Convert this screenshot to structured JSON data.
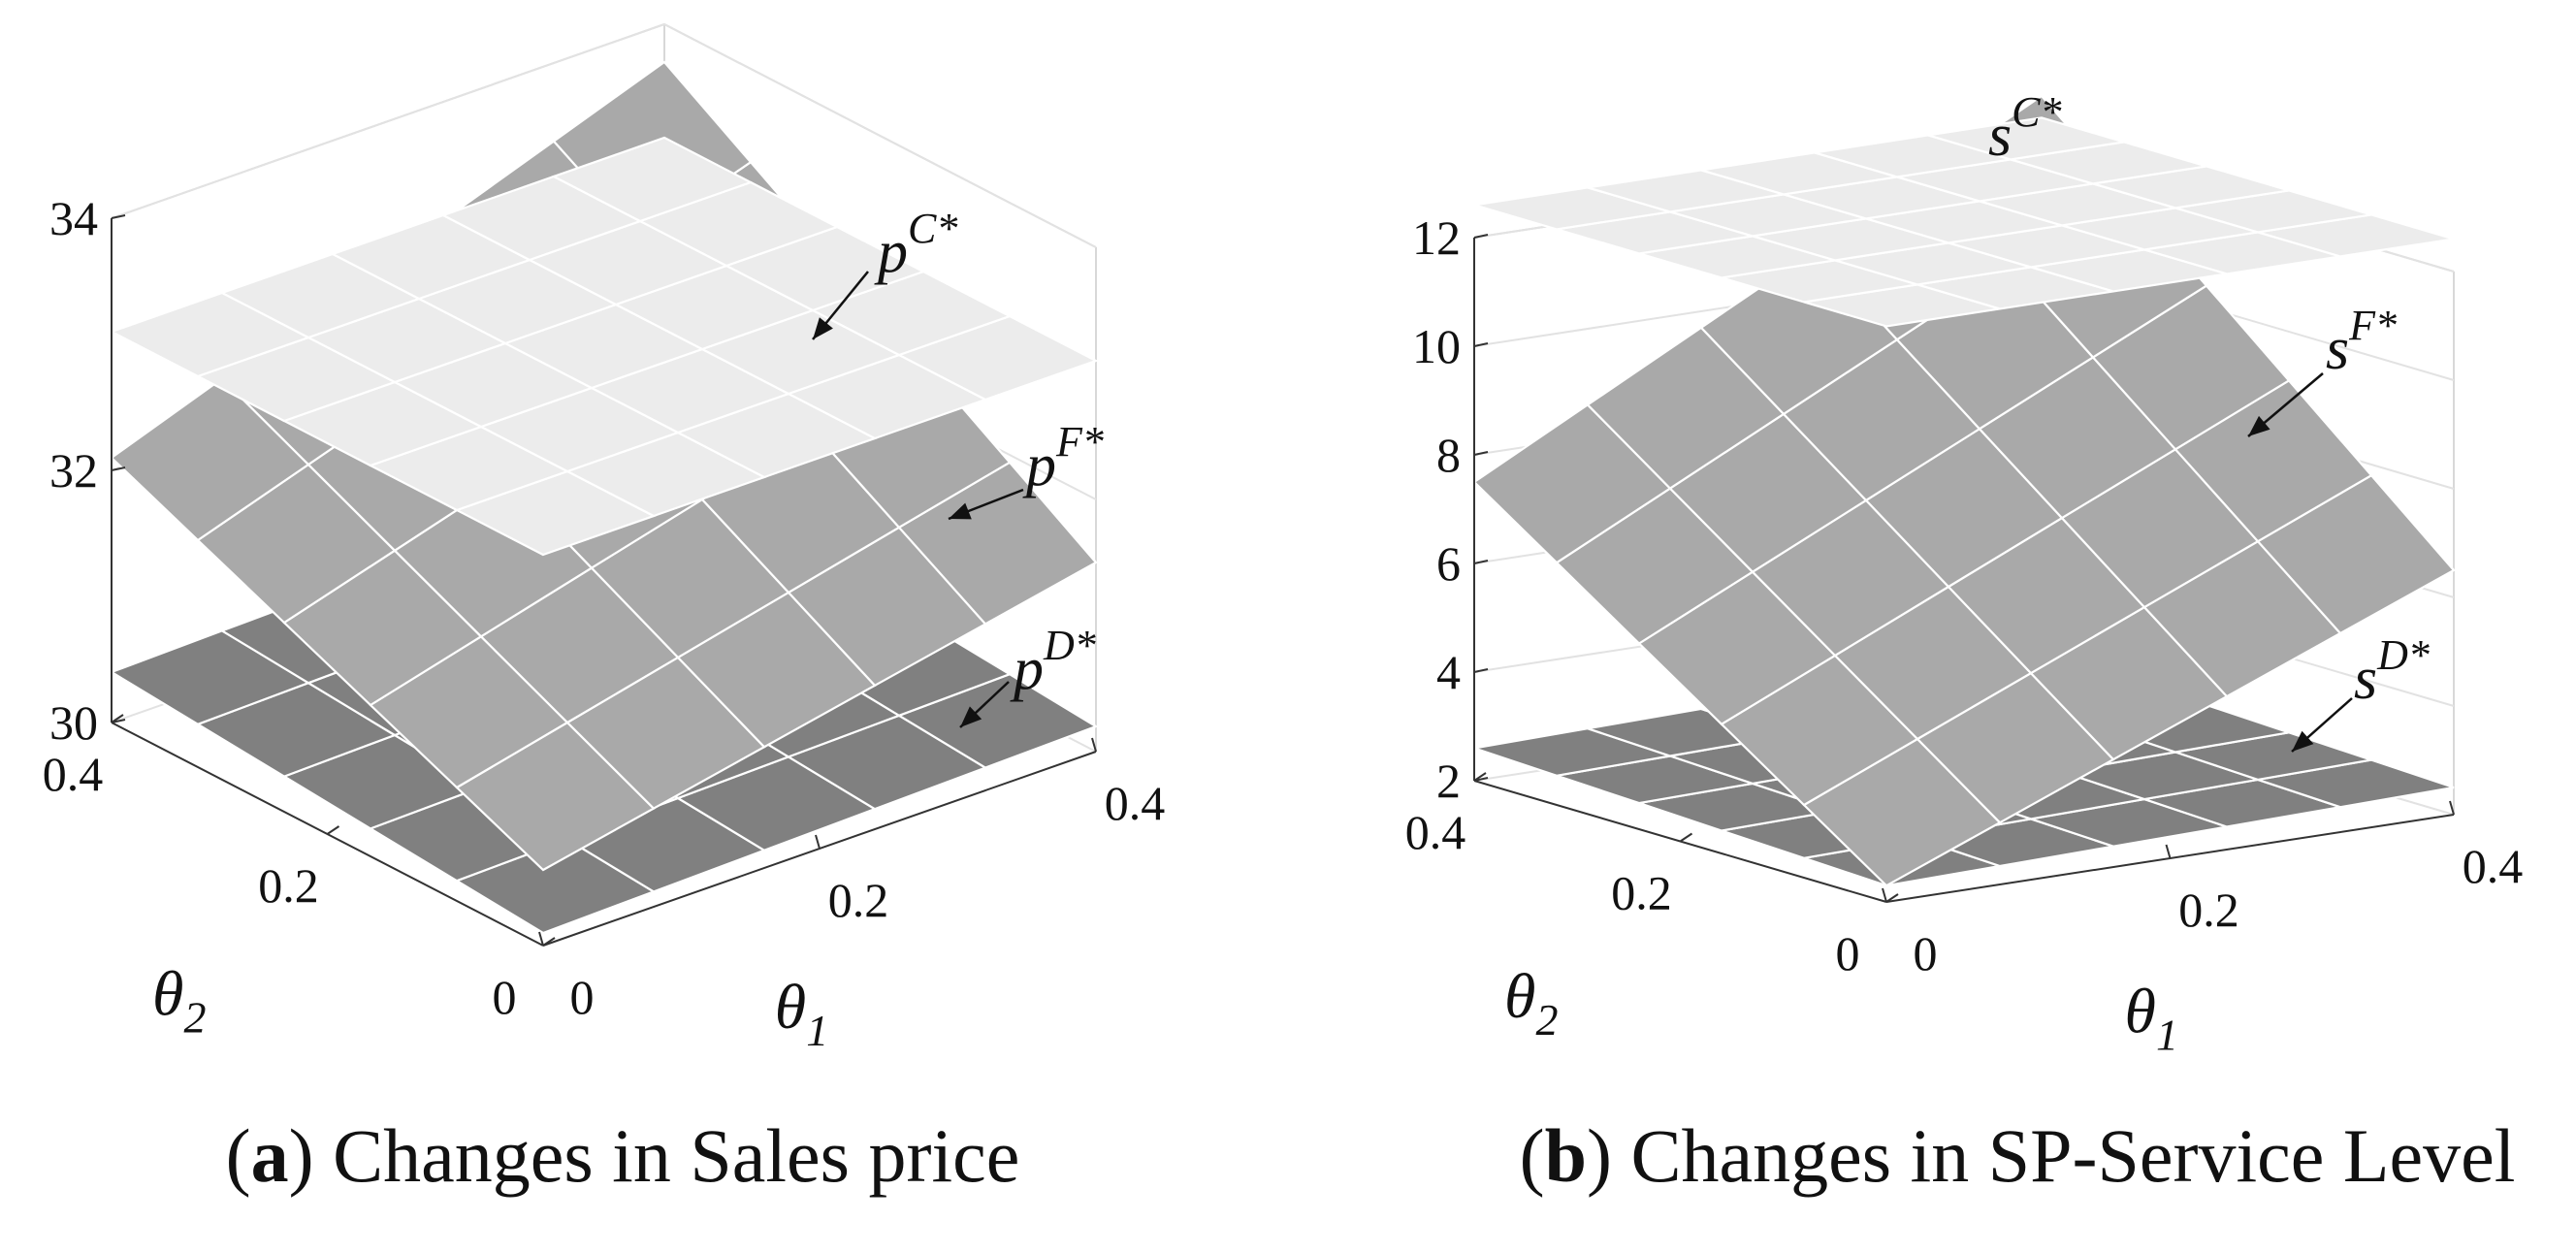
{
  "chart_data": [
    {
      "type": "surface3d",
      "caption_letter": "a",
      "caption_text": "Changes in Sales price",
      "xlabel": "θ",
      "xlabel_sub": "1",
      "ylabel": "θ",
      "ylabel_sub": "2",
      "xlim": [
        0,
        0.4
      ],
      "ylim": [
        0,
        0.4
      ],
      "zlim": [
        30,
        34
      ],
      "x_ticks": [
        0,
        0.2,
        0.4
      ],
      "y_ticks": [
        0,
        0.2,
        0.4
      ],
      "z_ticks": [
        30,
        32,
        34
      ],
      "x_tick_labels": [
        "0",
        "0.2",
        "0.4"
      ],
      "y_tick_labels": [
        "0",
        "0.2",
        "0.4"
      ],
      "z_tick_labels": [
        "30",
        "32",
        "34"
      ],
      "series": [
        {
          "name": "p",
          "name_sup": "C*",
          "color": "#ececec",
          "z": [
            [
              33.1,
              33.1
            ],
            [
              33.1,
              33.1
            ]
          ]
        },
        {
          "name": "p",
          "name_sup": "F*",
          "color": "#a9a9a9",
          "z": [
            [
              30.6,
              31.5
            ],
            [
              32.1,
              33.7
            ]
          ]
        },
        {
          "name": "p",
          "name_sup": "D*",
          "color": "#808080",
          "z": [
            [
              30.1,
              30.2
            ],
            [
              30.4,
              30.5
            ]
          ]
        }
      ]
    },
    {
      "type": "surface3d",
      "caption_letter": "b",
      "caption_text": "Changes in SP-Service Level",
      "xlabel": "θ",
      "xlabel_sub": "1",
      "ylabel": "θ",
      "ylabel_sub": "2",
      "xlim": [
        0,
        0.4
      ],
      "ylim": [
        0,
        0.4
      ],
      "zlim": [
        2,
        12
      ],
      "x_ticks": [
        0,
        0.2,
        0.4
      ],
      "y_ticks": [
        0,
        0.2,
        0.4
      ],
      "z_ticks": [
        2,
        4,
        6,
        8,
        10,
        12
      ],
      "x_tick_labels": [
        "0",
        "0.2",
        "0.4"
      ],
      "y_tick_labels": [
        "0",
        "0.2",
        "0.4"
      ],
      "z_tick_labels": [
        "2",
        "4",
        "6",
        "8",
        "10",
        "12"
      ],
      "series": [
        {
          "name": "s",
          "name_sup": "C*",
          "color": "#ececec",
          "z": [
            [
              12.6,
              12.6
            ],
            [
              12.6,
              12.6
            ]
          ]
        },
        {
          "name": "s",
          "name_sup": "F*",
          "color": "#a9a9a9",
          "z": [
            [
              2.3,
              6.5
            ],
            [
              7.5,
              13.0
            ]
          ]
        },
        {
          "name": "s",
          "name_sup": "D*",
          "color": "#808080",
          "z": [
            [
              2.3,
              2.5
            ],
            [
              2.6,
              2.8
            ]
          ]
        }
      ]
    }
  ]
}
